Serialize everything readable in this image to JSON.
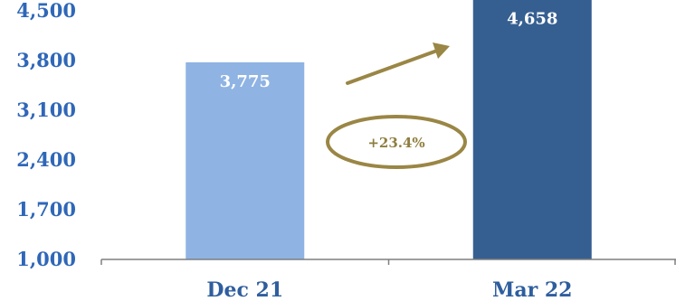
{
  "chart_data": {
    "type": "bar",
    "categories": [
      "Dec 21",
      "Mar 22"
    ],
    "values": [
      3775,
      4658
    ],
    "value_labels": [
      "3,775",
      "4,658"
    ],
    "ylim": [
      1000,
      4500
    ],
    "yticks": [
      1000,
      1700,
      2400,
      3100,
      3800,
      4500
    ],
    "ytick_labels": [
      "1,000",
      "1,700",
      "2,400",
      "3,100",
      "3,800",
      "4,500"
    ],
    "bar_colors": [
      "#8fb3e3",
      "#365f91"
    ],
    "annotation": "+23.4%",
    "annotation_color": "#8f7d3f",
    "axis_color": "#7f7f7f",
    "tick_color": "#2f67b8",
    "category_color": "#2f5e9e",
    "grid": false,
    "legend": "none"
  }
}
